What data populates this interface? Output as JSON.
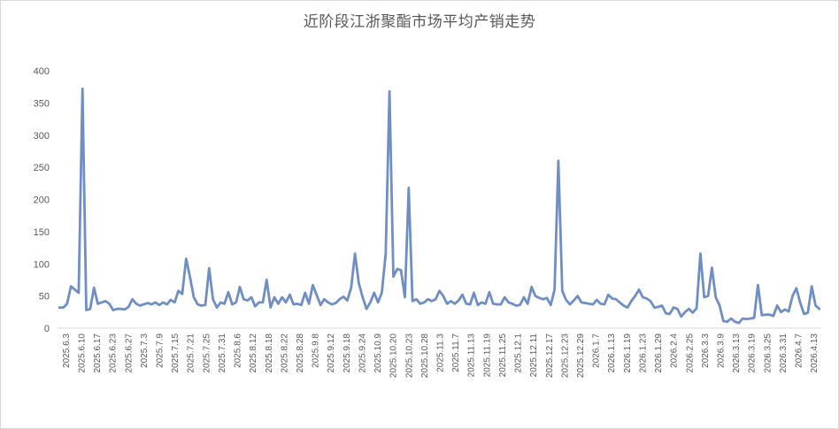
{
  "chart_data": {
    "type": "line",
    "title": "近阶段江浙聚酯市场平均产销走势",
    "xlabel": "",
    "ylabel": "",
    "ylim": [
      0,
      400
    ],
    "yticks": [
      0,
      50,
      100,
      150,
      200,
      250,
      300,
      350,
      400
    ],
    "grid": false,
    "legend": "none",
    "line_color": "#6f8fc4",
    "x_tick_labels": [
      "2025.6.3",
      "2025.6.10",
      "2025.6.17",
      "2025.6.23",
      "2025.6.27",
      "2025.7.3",
      "2025.7.9",
      "2025.7.15",
      "2025.7.21",
      "2025.7.25",
      "2025.7.31",
      "2025.8.6",
      "2025.8.12",
      "2025.8.18",
      "2025.8.22",
      "2025.8.28",
      "2025.9.8",
      "2025.9.12",
      "2025.9.18",
      "2025.9.24",
      "2025.10.9",
      "2025.10.20",
      "2025.10.23",
      "2025.10.28",
      "2025.11.3",
      "2025.11.7",
      "2025.11.13",
      "2025.11.19",
      "2025.11.25",
      "2025.12.1",
      "2025.12.11",
      "2025.12.17",
      "2025.12.23",
      "2025.12.29",
      "2026.1.7",
      "2026.1.13",
      "2026.1.19",
      "2026.1.23",
      "2026.1.29",
      "2026.2.4",
      "2026.2.25",
      "2026.3.3",
      "2026.3.9",
      "2026.3.13",
      "2026.3.19",
      "2026.3.25",
      "2026.3.31",
      "2026.4.7",
      "2026.4.13"
    ],
    "values": [
      32,
      32,
      38,
      65,
      60,
      55,
      372,
      28,
      30,
      63,
      38,
      40,
      42,
      38,
      28,
      30,
      30,
      29,
      33,
      45,
      38,
      35,
      37,
      39,
      37,
      40,
      36,
      40,
      37,
      44,
      40,
      58,
      53,
      108,
      80,
      48,
      37,
      35,
      36,
      93,
      45,
      32,
      40,
      38,
      56,
      37,
      40,
      64,
      45,
      43,
      48,
      34,
      40,
      40,
      75,
      32,
      48,
      38,
      48,
      40,
      52,
      37,
      38,
      36,
      55,
      38,
      67,
      52,
      36,
      45,
      40,
      37,
      39,
      45,
      49,
      43,
      63,
      116,
      70,
      48,
      30,
      40,
      55,
      40,
      55,
      115,
      368,
      80,
      92,
      90,
      48,
      218,
      42,
      45,
      38,
      40,
      45,
      42,
      45,
      58,
      50,
      38,
      42,
      38,
      43,
      52,
      38,
      37,
      55,
      36,
      40,
      38,
      56,
      38,
      37,
      37,
      48,
      40,
      38,
      35,
      36,
      48,
      38,
      64,
      50,
      47,
      45,
      47,
      36,
      60,
      260,
      58,
      44,
      37,
      43,
      50,
      40,
      39,
      38,
      37,
      44,
      38,
      37,
      52,
      46,
      45,
      40,
      35,
      32,
      42,
      50,
      60,
      48,
      46,
      42,
      32,
      33,
      35,
      23,
      22,
      32,
      30,
      18,
      25,
      30,
      24,
      31,
      116,
      48,
      50,
      94,
      48,
      35,
      11,
      10,
      15,
      10,
      8,
      15,
      14,
      15,
      16,
      67,
      20,
      21,
      21,
      19,
      35,
      25,
      29,
      26,
      50,
      62,
      40,
      22,
      24,
      65,
      35,
      30
    ]
  }
}
